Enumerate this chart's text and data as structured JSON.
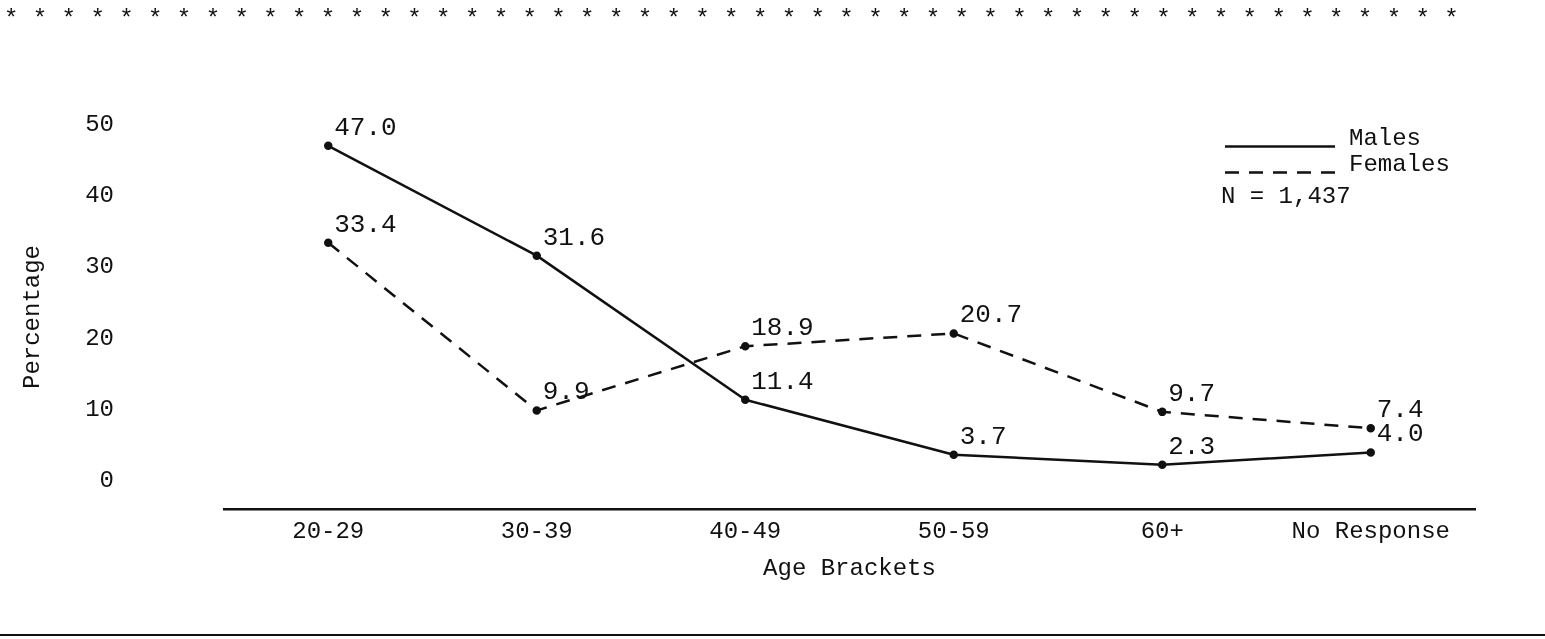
{
  "chart_data": {
    "type": "line",
    "xlabel": "Age Brackets",
    "ylabel": "Percentage",
    "categories": [
      "20-29",
      "30-39",
      "40-49",
      "50-59",
      "60+",
      "No Response"
    ],
    "series": [
      {
        "name": "Males",
        "color": "#111111",
        "line_style": "solid",
        "values": [
          47.0,
          31.6,
          11.4,
          3.7,
          2.3,
          4.0
        ],
        "value_labels": [
          "47.0",
          "31.6",
          "11.4",
          "3.7",
          "2.3",
          "4.0"
        ]
      },
      {
        "name": "Females",
        "color": "#111111",
        "line_style": "dashed",
        "values": [
          33.4,
          9.9,
          18.9,
          20.7,
          9.7,
          7.4
        ],
        "value_labels": [
          "33.4",
          "9.9",
          "18.9",
          "20.7",
          "9.7",
          "7.4"
        ]
      }
    ],
    "ylim": [
      -4,
      50
    ],
    "yticks": [
      0,
      10,
      20,
      30,
      40,
      50
    ],
    "grid": false,
    "legend": "top right",
    "marker": "circle",
    "annotations": [
      "* * * * * * * * * * * * * * * * * * * * * * * * * * * * * * * * * * * * * * * * * * * * * * * * * * *",
      "N = 1,437"
    ]
  }
}
